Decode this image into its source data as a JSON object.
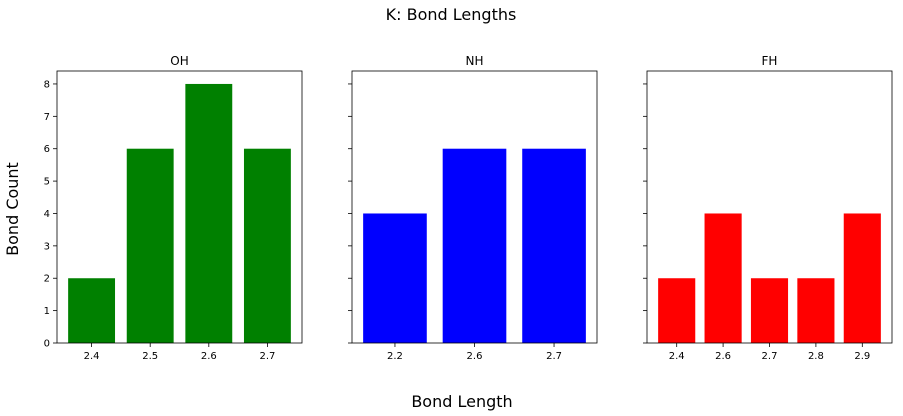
{
  "figure": {
    "title": "K: Bond Lengths",
    "xlabel": "Bond Length",
    "ylabel": "Bond Count"
  },
  "chart_data": [
    {
      "type": "bar",
      "title": "OH",
      "categories": [
        "2.4",
        "2.5",
        "2.6",
        "2.7"
      ],
      "values": [
        2,
        6,
        8,
        6
      ],
      "color": "#008000",
      "ylim": [
        0,
        8.4
      ],
      "yticks": [
        0,
        1,
        2,
        3,
        4,
        5,
        6,
        7,
        8
      ],
      "ytick_labels_visible": true,
      "grid": false
    },
    {
      "type": "bar",
      "title": "NH",
      "categories": [
        "2.2",
        "2.6",
        "2.7"
      ],
      "values": [
        4,
        6,
        6
      ],
      "color": "#0000ff",
      "ylim": [
        0,
        8.4
      ],
      "yticks": [
        0,
        1,
        2,
        3,
        4,
        5,
        6,
        7,
        8
      ],
      "ytick_labels_visible": false,
      "grid": false
    },
    {
      "type": "bar",
      "title": "FH",
      "categories": [
        "2.4",
        "2.6",
        "2.7",
        "2.8",
        "2.9"
      ],
      "values": [
        2,
        4,
        2,
        2,
        4
      ],
      "color": "#ff0000",
      "ylim": [
        0,
        8.4
      ],
      "yticks": [
        0,
        1,
        2,
        3,
        4,
        5,
        6,
        7,
        8
      ],
      "ytick_labels_visible": false,
      "grid": false
    }
  ]
}
